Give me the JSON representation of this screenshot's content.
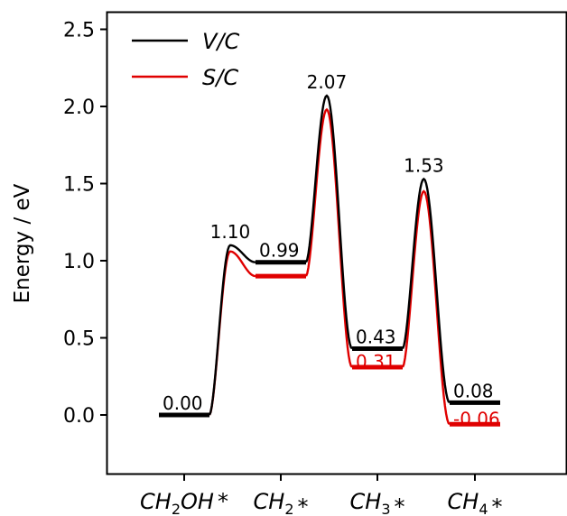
{
  "chart_data": {
    "type": "line",
    "ylabel": "Energy / eV",
    "ylim": [
      -0.38,
      2.6
    ],
    "yticks": [
      "0.0",
      "0.5",
      "1.0",
      "1.5",
      "2.0",
      "2.5"
    ],
    "categories": [
      {
        "base": "CH",
        "sub": "2",
        "rest": "OH",
        "star": "*"
      },
      {
        "base": "CH",
        "sub": "2",
        "rest": "",
        "star": "*"
      },
      {
        "base": "CH",
        "sub": "3",
        "rest": "",
        "star": "*"
      },
      {
        "base": "CH",
        "sub": "4",
        "rest": "",
        "star": "*"
      }
    ],
    "series": [
      {
        "name": "V/C",
        "color": "#000000",
        "levels": [
          0.0,
          0.99,
          0.43,
          0.08
        ],
        "transition_states": [
          1.1,
          2.07,
          1.53
        ],
        "level_labels": [
          "0.00",
          "0.99",
          "0.43",
          "0.08"
        ],
        "ts_labels": [
          "1.10",
          "2.07",
          "1.53"
        ]
      },
      {
        "name": "S/C",
        "color": "#e00000",
        "levels": [
          0.0,
          0.9,
          0.31,
          -0.06
        ],
        "transition_states": [
          1.06,
          1.98,
          1.45
        ],
        "level_labels": [
          "",
          "",
          "0.31",
          "-0.06"
        ],
        "ts_labels": [
          "",
          "",
          ""
        ]
      }
    ],
    "legend": "top-left"
  }
}
